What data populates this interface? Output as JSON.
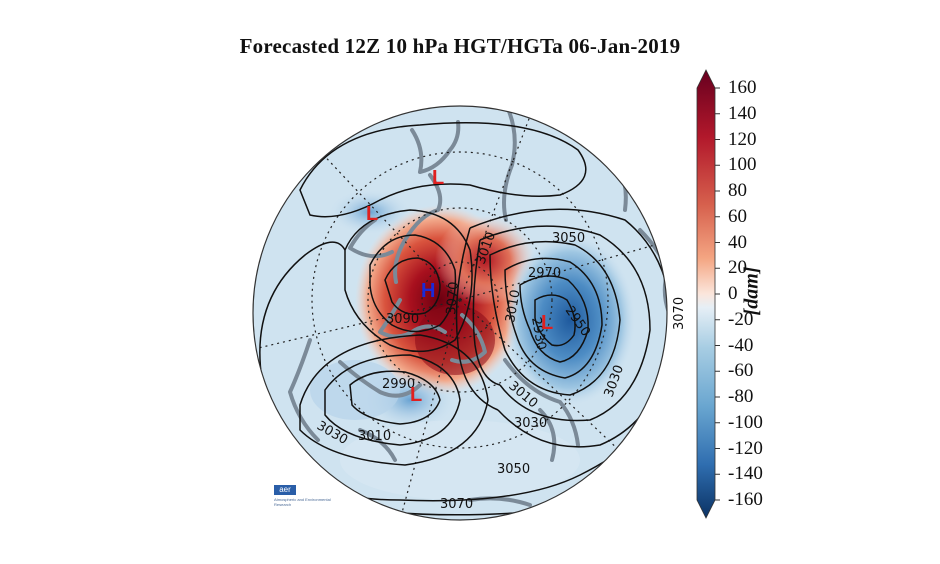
{
  "title": "Forecasted 12Z 10 hPa HGT/HGTa 06-Jan-2019",
  "colorbar": {
    "unit": "[dam]",
    "ticks": [
      "160",
      "140",
      "120",
      "100",
      "80",
      "60",
      "40",
      "20",
      "0",
      "-20",
      "-40",
      "-60",
      "-80",
      "-100",
      "-120",
      "-140",
      "-160"
    ]
  },
  "contour_labels": [
    "3050",
    "2970",
    "3010",
    "2950",
    "2930",
    "3010",
    "3090",
    "3070",
    "2990",
    "3010",
    "3030",
    "3010",
    "3030",
    "3050",
    "3070",
    "3070",
    "3030"
  ],
  "pressure_centers": [
    {
      "letter": "L",
      "color": "#e02020"
    },
    {
      "letter": "L",
      "color": "#e02020"
    },
    {
      "letter": "H",
      "color": "#1a2ad8"
    },
    {
      "letter": "L",
      "color": "#e02020"
    },
    {
      "letter": "L",
      "color": "#e02020"
    }
  ],
  "logo": {
    "mark": "aer",
    "text": "Atmospheric and Environmental Research"
  }
}
